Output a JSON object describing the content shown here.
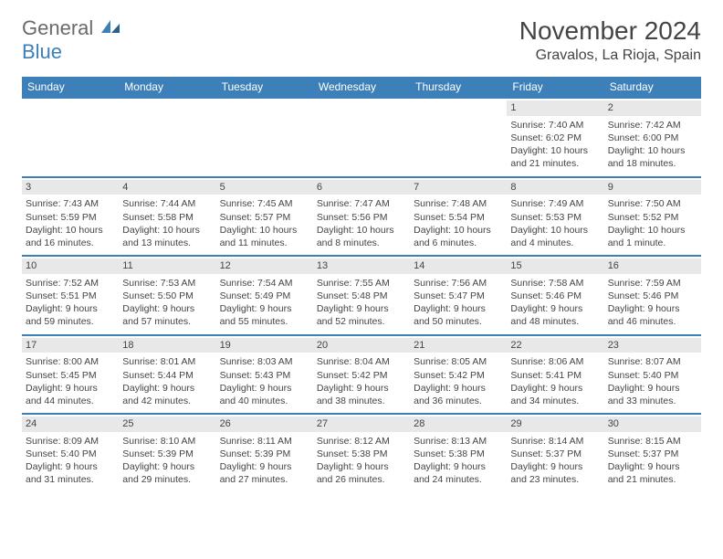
{
  "logo": {
    "general": "General",
    "blue": "Blue"
  },
  "title": {
    "month": "November 2024",
    "location": "Gravalos, La Rioja, Spain"
  },
  "colors": {
    "header_bg": "#3d7fb8",
    "header_text": "#ffffff",
    "daynum_bg": "#e8e8e8",
    "body_text": "#444444",
    "logo_gray": "#6a6a6a",
    "logo_blue": "#3d7fb8"
  },
  "weekdays": [
    "Sunday",
    "Monday",
    "Tuesday",
    "Wednesday",
    "Thursday",
    "Friday",
    "Saturday"
  ],
  "weeks": [
    [
      null,
      null,
      null,
      null,
      null,
      {
        "n": "1",
        "sr": "Sunrise: 7:40 AM",
        "ss": "Sunset: 6:02 PM",
        "d1": "Daylight: 10 hours",
        "d2": "and 21 minutes."
      },
      {
        "n": "2",
        "sr": "Sunrise: 7:42 AM",
        "ss": "Sunset: 6:00 PM",
        "d1": "Daylight: 10 hours",
        "d2": "and 18 minutes."
      }
    ],
    [
      {
        "n": "3",
        "sr": "Sunrise: 7:43 AM",
        "ss": "Sunset: 5:59 PM",
        "d1": "Daylight: 10 hours",
        "d2": "and 16 minutes."
      },
      {
        "n": "4",
        "sr": "Sunrise: 7:44 AM",
        "ss": "Sunset: 5:58 PM",
        "d1": "Daylight: 10 hours",
        "d2": "and 13 minutes."
      },
      {
        "n": "5",
        "sr": "Sunrise: 7:45 AM",
        "ss": "Sunset: 5:57 PM",
        "d1": "Daylight: 10 hours",
        "d2": "and 11 minutes."
      },
      {
        "n": "6",
        "sr": "Sunrise: 7:47 AM",
        "ss": "Sunset: 5:56 PM",
        "d1": "Daylight: 10 hours",
        "d2": "and 8 minutes."
      },
      {
        "n": "7",
        "sr": "Sunrise: 7:48 AM",
        "ss": "Sunset: 5:54 PM",
        "d1": "Daylight: 10 hours",
        "d2": "and 6 minutes."
      },
      {
        "n": "8",
        "sr": "Sunrise: 7:49 AM",
        "ss": "Sunset: 5:53 PM",
        "d1": "Daylight: 10 hours",
        "d2": "and 4 minutes."
      },
      {
        "n": "9",
        "sr": "Sunrise: 7:50 AM",
        "ss": "Sunset: 5:52 PM",
        "d1": "Daylight: 10 hours",
        "d2": "and 1 minute."
      }
    ],
    [
      {
        "n": "10",
        "sr": "Sunrise: 7:52 AM",
        "ss": "Sunset: 5:51 PM",
        "d1": "Daylight: 9 hours",
        "d2": "and 59 minutes."
      },
      {
        "n": "11",
        "sr": "Sunrise: 7:53 AM",
        "ss": "Sunset: 5:50 PM",
        "d1": "Daylight: 9 hours",
        "d2": "and 57 minutes."
      },
      {
        "n": "12",
        "sr": "Sunrise: 7:54 AM",
        "ss": "Sunset: 5:49 PM",
        "d1": "Daylight: 9 hours",
        "d2": "and 55 minutes."
      },
      {
        "n": "13",
        "sr": "Sunrise: 7:55 AM",
        "ss": "Sunset: 5:48 PM",
        "d1": "Daylight: 9 hours",
        "d2": "and 52 minutes."
      },
      {
        "n": "14",
        "sr": "Sunrise: 7:56 AM",
        "ss": "Sunset: 5:47 PM",
        "d1": "Daylight: 9 hours",
        "d2": "and 50 minutes."
      },
      {
        "n": "15",
        "sr": "Sunrise: 7:58 AM",
        "ss": "Sunset: 5:46 PM",
        "d1": "Daylight: 9 hours",
        "d2": "and 48 minutes."
      },
      {
        "n": "16",
        "sr": "Sunrise: 7:59 AM",
        "ss": "Sunset: 5:46 PM",
        "d1": "Daylight: 9 hours",
        "d2": "and 46 minutes."
      }
    ],
    [
      {
        "n": "17",
        "sr": "Sunrise: 8:00 AM",
        "ss": "Sunset: 5:45 PM",
        "d1": "Daylight: 9 hours",
        "d2": "and 44 minutes."
      },
      {
        "n": "18",
        "sr": "Sunrise: 8:01 AM",
        "ss": "Sunset: 5:44 PM",
        "d1": "Daylight: 9 hours",
        "d2": "and 42 minutes."
      },
      {
        "n": "19",
        "sr": "Sunrise: 8:03 AM",
        "ss": "Sunset: 5:43 PM",
        "d1": "Daylight: 9 hours",
        "d2": "and 40 minutes."
      },
      {
        "n": "20",
        "sr": "Sunrise: 8:04 AM",
        "ss": "Sunset: 5:42 PM",
        "d1": "Daylight: 9 hours",
        "d2": "and 38 minutes."
      },
      {
        "n": "21",
        "sr": "Sunrise: 8:05 AM",
        "ss": "Sunset: 5:42 PM",
        "d1": "Daylight: 9 hours",
        "d2": "and 36 minutes."
      },
      {
        "n": "22",
        "sr": "Sunrise: 8:06 AM",
        "ss": "Sunset: 5:41 PM",
        "d1": "Daylight: 9 hours",
        "d2": "and 34 minutes."
      },
      {
        "n": "23",
        "sr": "Sunrise: 8:07 AM",
        "ss": "Sunset: 5:40 PM",
        "d1": "Daylight: 9 hours",
        "d2": "and 33 minutes."
      }
    ],
    [
      {
        "n": "24",
        "sr": "Sunrise: 8:09 AM",
        "ss": "Sunset: 5:40 PM",
        "d1": "Daylight: 9 hours",
        "d2": "and 31 minutes."
      },
      {
        "n": "25",
        "sr": "Sunrise: 8:10 AM",
        "ss": "Sunset: 5:39 PM",
        "d1": "Daylight: 9 hours",
        "d2": "and 29 minutes."
      },
      {
        "n": "26",
        "sr": "Sunrise: 8:11 AM",
        "ss": "Sunset: 5:39 PM",
        "d1": "Daylight: 9 hours",
        "d2": "and 27 minutes."
      },
      {
        "n": "27",
        "sr": "Sunrise: 8:12 AM",
        "ss": "Sunset: 5:38 PM",
        "d1": "Daylight: 9 hours",
        "d2": "and 26 minutes."
      },
      {
        "n": "28",
        "sr": "Sunrise: 8:13 AM",
        "ss": "Sunset: 5:38 PM",
        "d1": "Daylight: 9 hours",
        "d2": "and 24 minutes."
      },
      {
        "n": "29",
        "sr": "Sunrise: 8:14 AM",
        "ss": "Sunset: 5:37 PM",
        "d1": "Daylight: 9 hours",
        "d2": "and 23 minutes."
      },
      {
        "n": "30",
        "sr": "Sunrise: 8:15 AM",
        "ss": "Sunset: 5:37 PM",
        "d1": "Daylight: 9 hours",
        "d2": "and 21 minutes."
      }
    ]
  ]
}
